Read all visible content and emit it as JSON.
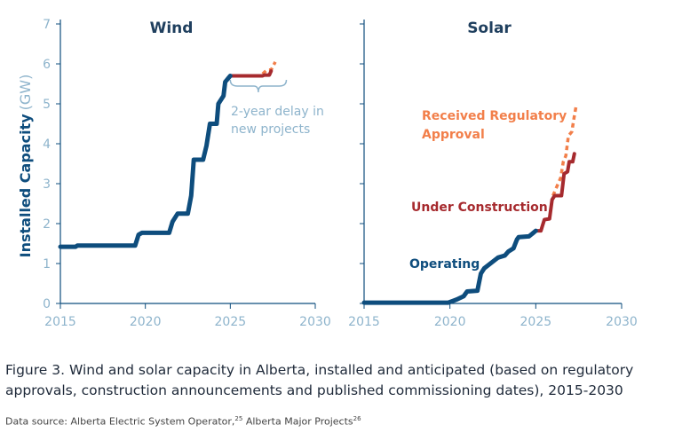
{
  "chart_data": [
    {
      "type": "line",
      "title": "Wind",
      "xlabel": "",
      "ylabel": "Installed Capacity",
      "ylabel_unit": "(GW)",
      "xlim": [
        2015,
        2030
      ],
      "ylim": [
        0,
        7
      ],
      "x_ticks": [
        "2015",
        "2020",
        "2025",
        "2030"
      ],
      "y_ticks": [
        "0",
        "1",
        "2",
        "3",
        "4",
        "5",
        "6",
        "7"
      ],
      "series": [
        {
          "role": "operating",
          "color": "#0e4d7d",
          "points": [
            [
              2015.0,
              1.42
            ],
            [
              2015.9,
              1.42
            ],
            [
              2016.0,
              1.45
            ],
            [
              2019.4,
              1.45
            ],
            [
              2019.6,
              1.72
            ],
            [
              2019.8,
              1.77
            ],
            [
              2020.3,
              1.77
            ],
            [
              2021.4,
              1.77
            ],
            [
              2021.6,
              2.05
            ],
            [
              2021.9,
              2.25
            ],
            [
              2022.5,
              2.25
            ],
            [
              2022.7,
              2.7
            ],
            [
              2022.85,
              3.6
            ],
            [
              2023.4,
              3.6
            ],
            [
              2023.6,
              3.95
            ],
            [
              2023.8,
              4.5
            ],
            [
              2024.2,
              4.5
            ],
            [
              2024.3,
              5.0
            ],
            [
              2024.6,
              5.2
            ],
            [
              2024.7,
              5.55
            ],
            [
              2025.0,
              5.7
            ]
          ]
        },
        {
          "role": "under-construction",
          "color": "#a62a2e",
          "points": [
            [
              2025.0,
              5.7
            ],
            [
              2026.9,
              5.7
            ],
            [
              2027.0,
              5.72
            ],
            [
              2027.3,
              5.72
            ],
            [
              2027.4,
              5.82
            ]
          ]
        },
        {
          "role": "regulatory-approval",
          "color": "#f27f4a",
          "points": [
            [
              2026.9,
              5.75
            ],
            [
              2027.15,
              5.85
            ],
            [
              2027.4,
              5.85
            ],
            [
              2027.65,
              6.05
            ]
          ]
        }
      ],
      "annotations": [
        {
          "text": "2-year delay in",
          "color": "#8eb4cc"
        },
        {
          "text": "new projects",
          "color": "#8eb4cc"
        }
      ]
    },
    {
      "type": "line",
      "title": "Solar",
      "xlabel": "",
      "ylabel": "",
      "xlim": [
        2015,
        2030
      ],
      "ylim": [
        0,
        7
      ],
      "x_ticks": [
        "2015",
        "2020",
        "2025",
        "2030"
      ],
      "series": [
        {
          "role": "operating",
          "color": "#0e4d7d",
          "points": [
            [
              2015.0,
              0.02
            ],
            [
              2019.9,
              0.02
            ],
            [
              2020.4,
              0.1
            ],
            [
              2020.8,
              0.18
            ],
            [
              2021.0,
              0.3
            ],
            [
              2021.6,
              0.32
            ],
            [
              2021.8,
              0.75
            ],
            [
              2022.0,
              0.88
            ],
            [
              2022.5,
              1.05
            ],
            [
              2022.8,
              1.15
            ],
            [
              2023.2,
              1.2
            ],
            [
              2023.4,
              1.3
            ],
            [
              2023.7,
              1.38
            ],
            [
              2023.9,
              1.6
            ],
            [
              2024.0,
              1.66
            ],
            [
              2024.6,
              1.68
            ],
            [
              2024.8,
              1.75
            ],
            [
              2025.0,
              1.82
            ]
          ]
        },
        {
          "role": "under-construction",
          "color": "#a62a2e",
          "points": [
            [
              2025.0,
              1.82
            ],
            [
              2025.3,
              1.82
            ],
            [
              2025.5,
              2.1
            ],
            [
              2025.8,
              2.12
            ],
            [
              2025.95,
              2.6
            ],
            [
              2026.1,
              2.7
            ],
            [
              2026.5,
              2.7
            ],
            [
              2026.65,
              3.25
            ],
            [
              2026.85,
              3.3
            ],
            [
              2026.95,
              3.55
            ],
            [
              2027.15,
              3.55
            ],
            [
              2027.25,
              3.75
            ]
          ]
        },
        {
          "role": "regulatory-approval",
          "color": "#f27f4a",
          "points": [
            [
              2026.0,
              2.7
            ],
            [
              2026.2,
              2.9
            ],
            [
              2026.45,
              3.15
            ],
            [
              2026.6,
              3.55
            ],
            [
              2026.75,
              3.7
            ],
            [
              2026.9,
              4.2
            ],
            [
              2027.1,
              4.3
            ],
            [
              2027.25,
              4.7
            ],
            [
              2027.35,
              4.95
            ]
          ]
        }
      ],
      "annotations": [
        {
          "text": "Received Regulatory",
          "color": "#f27f4a"
        },
        {
          "text": "Approval",
          "color": "#f27f4a"
        },
        {
          "text": "Under Construction",
          "color": "#a62a2e"
        },
        {
          "text": "Operating",
          "color": "#0e4d7d"
        }
      ]
    }
  ],
  "caption": "Figure 3. Wind and solar capacity in Alberta, installed and anticipated (based on regulatory approvals, construction announcements and published commissioning dates), 2015-2030",
  "source": {
    "prefix": "Data source: Alberta Electric System Operator,",
    "ref1": "25",
    "middle": " Alberta Major Projects",
    "ref2": "26"
  },
  "colors": {
    "axis_text": "#8eb4cc",
    "axis_line": "#0e4d7d",
    "title": "#1f3f5e"
  }
}
